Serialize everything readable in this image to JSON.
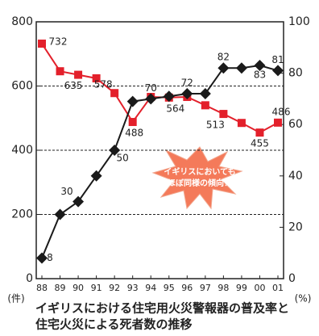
{
  "chart_data": {
    "type": "line",
    "categories": [
      "88",
      "89",
      "90",
      "91",
      "92",
      "93",
      "94",
      "95",
      "96",
      "97",
      "98",
      "99",
      "00",
      "01"
    ],
    "series": [
      {
        "name": "死者数",
        "color": "#e3202b",
        "marker": "square",
        "values": [
          732,
          646,
          635,
          624,
          578,
          488,
          566,
          564,
          566,
          540,
          513,
          485,
          455,
          486
        ],
        "value_labels": [
          "732",
          null,
          "635",
          null,
          "578",
          "488",
          null,
          "564",
          null,
          null,
          "513",
          null,
          "455",
          "486"
        ]
      },
      {
        "name": "普及率",
        "color": "#1a1a1a",
        "marker": "diamond",
        "axis": "y2",
        "values": [
          8,
          25,
          30,
          40,
          50,
          69,
          70,
          71,
          72,
          72,
          82,
          82,
          83,
          81
        ],
        "value_labels": [
          "8",
          null,
          "30",
          null,
          "50",
          null,
          "70",
          null,
          "72",
          null,
          "82",
          null,
          "83",
          "81"
        ]
      }
    ],
    "ylim": [
      0,
      800
    ],
    "yticks": [
      0,
      200,
      400,
      600,
      800
    ],
    "y2lim": [
      0,
      100
    ],
    "y2ticks": [
      0,
      20,
      40,
      60,
      80,
      100
    ],
    "grid": true,
    "ylabel": "(件)",
    "y2label": "(%)",
    "annotation": [
      "イギリスにおいても",
      "ほぼ同様の傾向！"
    ],
    "caption": [
      "イギリスにおける住宅用火災警報器の普及率と",
      "住宅火災による死者数の推移"
    ]
  }
}
